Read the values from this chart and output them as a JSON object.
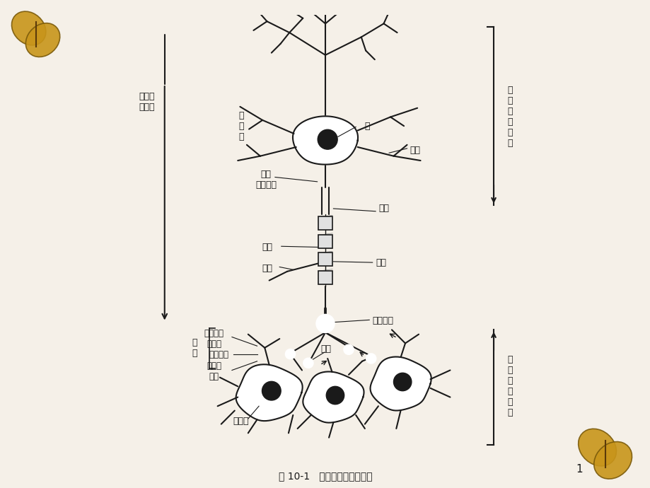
{
  "bg_color": "#f5f0e8",
  "white_bg": "#ffffff",
  "title": "图 10-1   神经元和突触模式图",
  "page_num": "1",
  "labels": {
    "signal_dir": "信号传\n递方向",
    "cell_body_upper": "细\n胞\n体",
    "nucleus": "核",
    "axon_initial": "轴突\n（始段）",
    "axon_hillock": "轴丘",
    "axon": "轴突",
    "myelin": "髓鞘",
    "dendrite_upper": "树突",
    "collateral": "侧支",
    "axon_terminal": "轴突末梢",
    "pre_axon_terminal": "突触前轴\n突末梢",
    "synaptic_cleft": "突触间隙",
    "post_dendrite": "突触后\n树突",
    "cell_body_lower": "细胞体",
    "dendrite_lower": "树突",
    "synapse_label": "突\n触",
    "pre_neuron": "突\n触\n前\n神\n经\n元",
    "post_neuron": "突\n触\n后\n神\n经\n元"
  },
  "arrow_color": "#1a1a1a",
  "line_color": "#1a1a1a",
  "line_width": 1.5
}
